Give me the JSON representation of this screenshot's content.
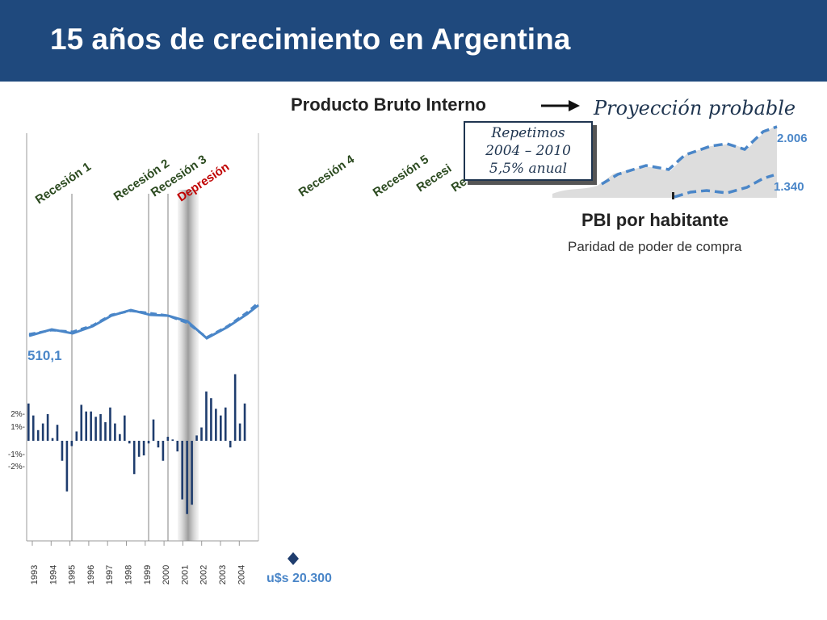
{
  "header": {
    "title": "15 años de crecimiento en Argentina"
  },
  "labels": {
    "pbi_title": "Producto Bruto Interno",
    "projection": "Proyección probable",
    "callout_lines": [
      "Repetimos",
      "2004 – 2010",
      "5,5% anual"
    ],
    "pbi_habitante": "PBI por habitante",
    "ppp": "Paridad de poder de compra",
    "usd": "u$s 20.300"
  },
  "colors": {
    "header_bg": "#1f497d",
    "line": "#4a86c8",
    "bars": "#1f3d6e",
    "depression": "#c00000",
    "shade": "#dddddd"
  },
  "chart_data": {
    "type": "bar",
    "x_ticks": [
      "1993",
      "1994",
      "1995",
      "1996",
      "1997",
      "1998",
      "1999",
      "2000",
      "2001",
      "2002",
      "2003",
      "2004"
    ],
    "y_ticks": [
      "2%-",
      "1%-",
      "-1%-",
      "-2%-"
    ],
    "quarterly_growth": [
      2.8,
      1.9,
      0.8,
      1.3,
      2.0,
      0.2,
      1.2,
      -1.5,
      -3.8,
      -0.4,
      0.7,
      2.7,
      2.2,
      2.2,
      1.8,
      2.0,
      1.4,
      2.5,
      1.3,
      0.5,
      1.9,
      -0.2,
      -2.5,
      -1.2,
      -1.1,
      -0.2,
      1.6,
      -0.5,
      -1.5,
      0.3,
      0.1,
      -0.8,
      -4.4,
      -5.5,
      -4.8,
      0.4,
      1.0,
      3.7,
      3.2,
      2.4,
      1.9,
      2.5,
      -0.5,
      5.0,
      1.3,
      2.8
    ],
    "recessions": [
      {
        "label": "Recesión 1",
        "color": "#2b4a1f"
      },
      {
        "label": "Recesión 2",
        "color": "#2b4a1f"
      },
      {
        "label": "Recesión 3",
        "color": "#2b4a1f"
      },
      {
        "label": "Depresión",
        "color": "#c00000"
      },
      {
        "label": "Recesión 4",
        "color": "#2b4a1f"
      },
      {
        "label": "Recesión 5",
        "color": "#2b4a1f"
      },
      {
        "label": "Recesi",
        "color": "#2b4a1f"
      },
      {
        "label": "Re",
        "color": "#2b4a1f"
      }
    ],
    "gdp_line_start_label": "510,1",
    "per_capita_projection_labels": [
      "2.006",
      "1.340"
    ]
  }
}
